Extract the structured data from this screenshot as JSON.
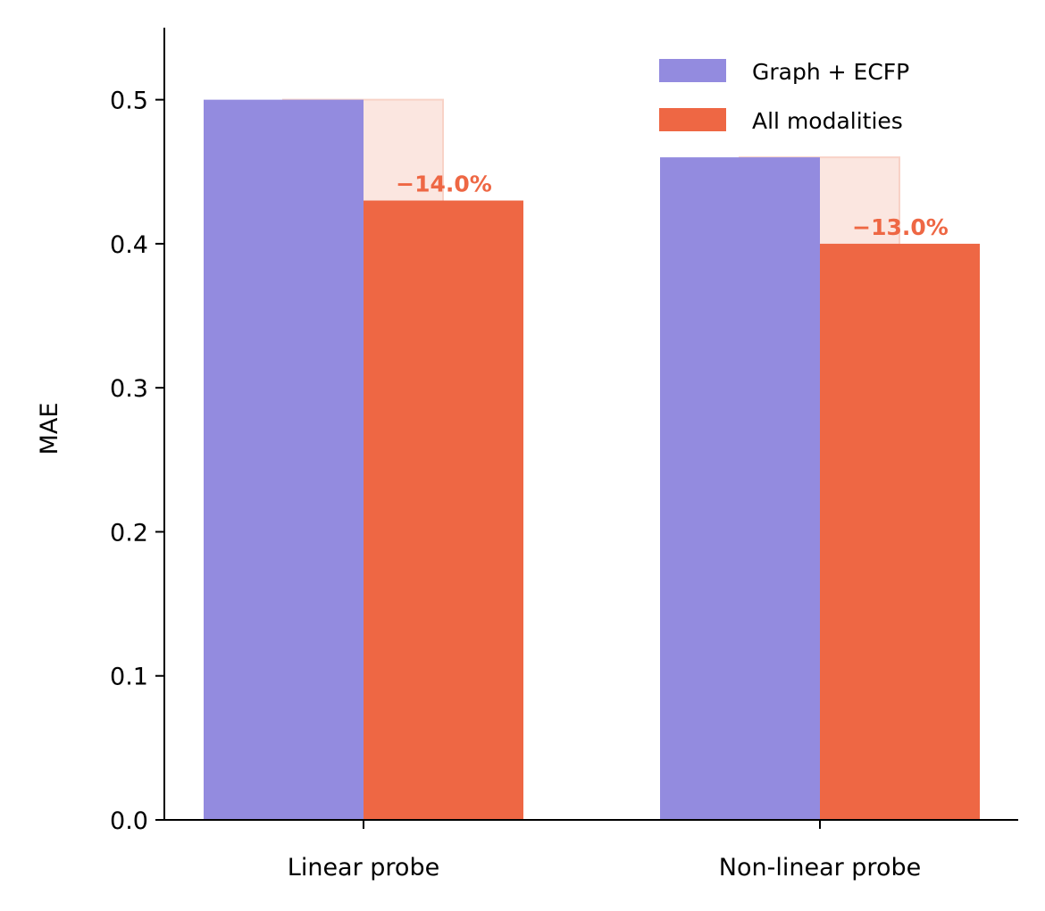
{
  "chart_data": {
    "type": "bar",
    "categories": [
      "Linear probe",
      "Non-linear probe"
    ],
    "series": [
      {
        "name": "Graph + ECFP",
        "values": [
          0.5,
          0.46
        ],
        "color": "#938BDF"
      },
      {
        "name": "All modalities",
        "values": [
          0.43,
          0.4
        ],
        "color": "#EE6744"
      }
    ],
    "annotations": [
      "−14.0%",
      "−13.0%"
    ],
    "annotation_color": "#EE6744",
    "highlight_color": "#FBE6E0",
    "ylabel": "MAE",
    "xlabel": "",
    "ylim": [
      0,
      0.55
    ],
    "yticks": [
      0.0,
      0.1,
      0.2,
      0.3,
      0.4,
      0.5
    ],
    "ytick_labels": [
      "0.0",
      "0.1",
      "0.2",
      "0.3",
      "0.4",
      "0.5"
    ],
    "grid": false,
    "legend_position": "top-right"
  }
}
